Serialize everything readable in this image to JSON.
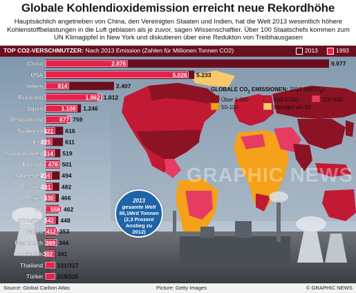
{
  "title": "Globale Kohlendioxidemission erreicht neue Rekordhöhe",
  "intro": "Hauptsächlich angetrieben von China, den Vereinigten Staaten und Indien, hat die Welt 2013 wesentlich höhere Kohlenstoffbelastungen in die Luft geblasen als je zuvor, sagen Wissenschaftler. Über 100 Staatschefs kommen zum UN Klimagipfel in New York und diskutieren über eine Redukton von Treibhausgasen",
  "header": {
    "label_bold": "TOP CO2-VERSCHMUTZER:",
    "label_rest": " Nach 2013 Emission (Zahlen für Millionen Tonnen CO2)",
    "legend_2013": "2013",
    "legend_1993": "1993"
  },
  "colors": {
    "c2013": "#6a0f20",
    "c1993": "#e8214d",
    "cat_over_1000": "#8c1323",
    "cat_500_1000": "#c21a34",
    "cat_100_500": "#e63c62",
    "cat_50_100": "#f5a11a",
    "cat_under_50": "#f7c96a"
  },
  "chart_data": {
    "type": "bar",
    "series": [
      {
        "name": "2013",
        "color": "#6a0f20"
      },
      {
        "name": "1993",
        "color": "#e8214d"
      }
    ],
    "rows": [
      {
        "country": "China",
        "v2013": 9977,
        "v1993": 2876,
        "l2013": "9.977",
        "l1993": "2.876"
      },
      {
        "country": "USA",
        "v2013": 5233,
        "v1993": 5026,
        "l2013": "5.233",
        "l1993": "5.026"
      },
      {
        "country": "Indien",
        "v2013": 2407,
        "v1993": 814,
        "l2013": "2.407",
        "l1993": "814"
      },
      {
        "country": "Russland",
        "v2013": 1812,
        "v1993": 1962,
        "l2013": "1.812",
        "l1993": "1.962"
      },
      {
        "country": "Japan",
        "v2013": 1246,
        "v1993": 1108,
        "l2013": "1.246",
        "l1993": "1.108"
      },
      {
        "country": "Deutschland",
        "v2013": 759,
        "v1993": 877,
        "l2013": "759",
        "l1993": "877"
      },
      {
        "country": "Südkorea",
        "v2013": 616,
        "v1993": 322,
        "l2013": "616",
        "l1993": "322"
      },
      {
        "country": "Iran",
        "v2013": 611,
        "v1993": 225,
        "l2013": "611",
        "l1993": "225"
      },
      {
        "country": "Saudi Arabien",
        "v2013": 519,
        "v1993": 314,
        "l2013": "519",
        "l1993": "314"
      },
      {
        "country": "Kanada",
        "v2013": 501,
        "v1993": 478,
        "l2013": "501",
        "l1993": "478"
      },
      {
        "country": "Indonesien",
        "v2013": 494,
        "v1993": 216,
        "l2013": "494",
        "l1993": "216"
      },
      {
        "country": "Brasilien",
        "v2013": 482,
        "v1993": 231,
        "l2013": "482",
        "l1993": "231"
      },
      {
        "country": "Mexiko",
        "v2013": 466,
        "v1993": 330,
        "l2013": "466",
        "l1993": "330"
      },
      {
        "country": "UK",
        "v2013": 462,
        "v1993": 558,
        "l2013": "462",
        "l1993": "558"
      },
      {
        "country": "Südafrika",
        "v2013": 448,
        "v1993": 342,
        "l2013": "448",
        "l1993": "342"
      },
      {
        "country": "Italien",
        "v2013": 353,
        "v1993": 412,
        "l2013": "353",
        "l1993": "412"
      },
      {
        "country": "Frankreich",
        "v2013": 344,
        "v1993": 389,
        "l2013": "344",
        "l1993": "389"
      },
      {
        "country": "Australien",
        "v2013": 341,
        "v1993": 302,
        "l2013": "341",
        "l1993": "302"
      },
      {
        "country": "Thailand",
        "v2013": 131,
        "v1993": 327,
        "l2013": "",
        "l1993": "",
        "combined": "131/327"
      },
      {
        "country": "Türkei",
        "v2013": 159,
        "v1993": 325,
        "l2013": "",
        "l1993": "",
        "combined": "159/325"
      }
    ]
  },
  "map_legend": {
    "title": "GLOBALE CO",
    "title_sub": "2",
    "title_end": " EMISSIONEN:",
    "unit": " 2013 (MtCO",
    "unit_sub": "2",
    "unit_end": ")",
    "items": [
      {
        "label": "Über 1.000",
        "color": "#8c1323"
      },
      {
        "label": "500-1.000",
        "color": "#c21a34"
      },
      {
        "label": "100-500",
        "color": "#e63c62"
      },
      {
        "label": "50-100",
        "color": "#f5a11a"
      },
      {
        "label": "Weniger als 50",
        "color": "#f7c96a"
      }
    ]
  },
  "world_total": {
    "line1": "2013",
    "line2": "gesamte Welt",
    "line3": "36,1Mrd Tonnen",
    "line4": "(2,3 Prozent",
    "line5": "Anstieg zu",
    "line6": "2012)"
  },
  "watermark": "GRAPHIC NEWS",
  "footer": {
    "source": "Source: Global Carbon Atlas",
    "picture": "Picture: Getty Images",
    "credit": "© GRAPHIC NEWS"
  }
}
